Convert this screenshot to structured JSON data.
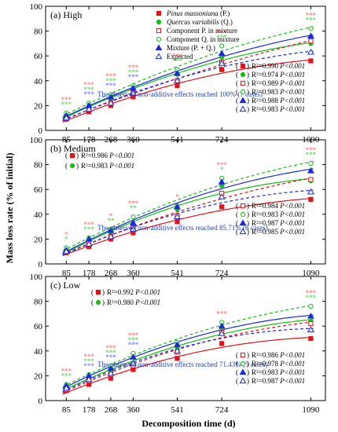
{
  "xlabel": "Decomposition time (d)",
  "ylabel": "Mass loss rate (% of initial)",
  "x_ticks": [
    85,
    178,
    268,
    360,
    541,
    724,
    1090
  ],
  "y_ticks": [
    0,
    20,
    40,
    60,
    80,
    100
  ],
  "legend": [
    {
      "label": "Pinus massoniana",
      "abbr": "(P.)",
      "italic": true,
      "marker": "square-filled",
      "color": "#e3121b"
    },
    {
      "label": "Quercus variabilis",
      "abbr": "(Q.)",
      "italic": true,
      "marker": "circle-filled",
      "color": "#15c015"
    },
    {
      "label": "Component P. in mixture",
      "abbr": "",
      "italic": false,
      "marker": "square-open",
      "color": "#e3121b"
    },
    {
      "label": "Component Q. in mixture",
      "abbr": "",
      "italic": false,
      "marker": "circle-open",
      "color": "#15c015"
    },
    {
      "label": "Mixture",
      "abbr": "(P. + Q.)",
      "italic": false,
      "marker": "triangle-filled",
      "color": "#1a2ad6"
    },
    {
      "label": "Expected",
      "abbr": "",
      "italic": false,
      "marker": "triangle-open",
      "color": "#1a2ad6"
    }
  ],
  "colors": {
    "pine": "#e3121b",
    "oak": "#15c015",
    "mix": "#1a2ad6",
    "star_red": "#ff8a8a",
    "star_green": "#7ad67a",
    "star_blue": "#8a8aff",
    "note": "#1f3fb8"
  },
  "chart_data": [
    {
      "type": "scatter",
      "title": "(a) High",
      "ylim": [
        0,
        100
      ],
      "note": "The observed non-additive effects reached 100% (7 cases)",
      "stats": [
        {
          "series": "Pinus massoniana",
          "r2": "R²=0.990",
          "p": "P<0.001"
        },
        {
          "series": "Quercus variabilis",
          "r2": "R²=0.974",
          "p": "P<0.001"
        },
        {
          "series": "Component P. in mixture",
          "r2": "R²=0.989",
          "p": "P<0.001"
        },
        {
          "series": "Component Q. in mixture",
          "r2": "R²=0.983",
          "p": "P<0.001"
        },
        {
          "series": "Mixture",
          "r2": "R²=0.988",
          "p": "P<0.001"
        },
        {
          "series": "Expected",
          "r2": "R²=0.983",
          "p": "P<0.001"
        }
      ],
      "series": [
        {
          "name": "Pinus massoniana",
          "x": [
            85,
            178,
            268,
            360,
            541,
            724,
            1090
          ],
          "y": [
            9,
            15,
            20,
            27,
            36,
            49,
            56
          ]
        },
        {
          "name": "Quercus variabilis",
          "x": [
            85,
            178,
            268,
            360,
            541,
            724,
            1090
          ],
          "y": [
            12,
            19,
            25,
            33,
            45,
            59,
            70
          ]
        },
        {
          "name": "Component P. in mixture",
          "x": [
            85,
            178,
            268,
            360,
            541,
            724,
            1090
          ],
          "y": [
            10,
            17,
            22,
            30,
            40,
            55,
            72
          ]
        },
        {
          "name": "Component Q. in mixture",
          "x": [
            85,
            178,
            268,
            360,
            541,
            724,
            1090
          ],
          "y": [
            14,
            22,
            29,
            36,
            49,
            68,
            82
          ]
        },
        {
          "name": "Mixture",
          "x": [
            85,
            178,
            268,
            360,
            541,
            724,
            1090
          ],
          "y": [
            12,
            20,
            27,
            34,
            46,
            62,
            76
          ]
        },
        {
          "name": "Expected",
          "x": [
            85,
            178,
            268,
            360,
            541,
            724,
            1090
          ],
          "y": [
            10,
            17,
            22,
            30,
            40,
            54,
            63
          ]
        }
      ],
      "significance": [
        {
          "x": 85,
          "rows": [
            "***",
            "***"
          ]
        },
        {
          "x": 178,
          "rows": [
            "***",
            "***",
            "***"
          ]
        },
        {
          "x": 268,
          "rows": [
            "***",
            "***",
            "***"
          ]
        },
        {
          "x": 360,
          "rows": [
            "***",
            "***",
            "***"
          ]
        },
        {
          "x": 541,
          "rows": [
            "***",
            "***"
          ]
        },
        {
          "x": 724,
          "rows": [
            "***",
            "***"
          ]
        },
        {
          "x": 1090,
          "rows": [
            "***",
            "***"
          ]
        }
      ]
    },
    {
      "type": "scatter",
      "title": "(b) Medium",
      "ylim": [
        0,
        100
      ],
      "note": "The observed non-additive effects reached 85.71% (6 cases)",
      "stats": [
        {
          "series": "Pinus massoniana",
          "r2": "R²=0.986",
          "p": "P<0.001"
        },
        {
          "series": "Quercus variabilis",
          "r2": "R²=0.983",
          "p": "P<0.001"
        },
        {
          "series": "Component P. in mixture",
          "r2": "R²=0.984",
          "p": "P<0.001"
        },
        {
          "series": "Component Q. in mixture",
          "r2": "R²=0.983",
          "p": "P<0.001"
        },
        {
          "series": "Mixture",
          "r2": "R²=0.987",
          "p": "P<0.001"
        },
        {
          "series": "Expected",
          "r2": "R²=0.985",
          "p": "P<0.001"
        }
      ],
      "series": [
        {
          "name": "Pinus massoniana",
          "x": [
            85,
            178,
            268,
            360,
            541,
            724,
            1090
          ],
          "y": [
            9,
            14,
            20,
            25,
            34,
            46,
            52
          ]
        },
        {
          "name": "Quercus variabilis",
          "x": [
            85,
            178,
            268,
            360,
            541,
            724,
            1090
          ],
          "y": [
            11,
            19,
            25,
            31,
            44,
            63,
            67
          ]
        },
        {
          "name": "Component P. in mixture",
          "x": [
            85,
            178,
            268,
            360,
            541,
            724,
            1090
          ],
          "y": [
            10,
            17,
            22,
            29,
            39,
            57,
            68
          ]
        },
        {
          "name": "Component Q. in mixture",
          "x": [
            85,
            178,
            268,
            360,
            541,
            724,
            1090
          ],
          "y": [
            13,
            21,
            28,
            38,
            47,
            69,
            81
          ]
        },
        {
          "name": "Mixture",
          "x": [
            85,
            178,
            268,
            360,
            541,
            724,
            1090
          ],
          "y": [
            11,
            20,
            27,
            33,
            46,
            66,
            75
          ]
        },
        {
          "name": "Expected",
          "x": [
            85,
            178,
            268,
            360,
            541,
            724,
            1090
          ],
          "y": [
            10,
            16,
            22,
            28,
            38,
            54,
            58
          ]
        }
      ],
      "significance": [
        {
          "x": 85,
          "rows": [
            "*",
            "*"
          ]
        },
        {
          "x": 178,
          "rows": [
            "***",
            "***"
          ]
        },
        {
          "x": 268,
          "rows": [
            "*",
            "**"
          ]
        },
        {
          "x": 360,
          "rows": [
            "***",
            "**"
          ]
        },
        {
          "x": 541,
          "rows": [
            "*"
          ]
        },
        {
          "x": 724,
          "rows": [
            "***",
            "*"
          ]
        },
        {
          "x": 1090,
          "rows": [
            "***",
            "***"
          ]
        }
      ]
    },
    {
      "type": "scatter",
      "title": "(c) Low",
      "ylim": [
        0,
        100
      ],
      "note": "The observed non-additive effects reached 71.43% (5 cases)",
      "stats": [
        {
          "series": "Pinus massoniana",
          "r2": "R²=0.992",
          "p": "P<0.001"
        },
        {
          "series": "Quercus variabilis",
          "r2": "R²=0.980",
          "p": "P<0.001"
        },
        {
          "series": "Component P. in mixture",
          "r2": "R²=0.986",
          "p": "P<0.001"
        },
        {
          "series": "Component Q. in mixture",
          "r2": "R²=0.978",
          "p": "P<0.001"
        },
        {
          "series": "Mixture",
          "r2": "R²=0.983",
          "p": "P<0.001"
        },
        {
          "series": "Expected",
          "r2": "R²=0.987",
          "p": "P<0.001"
        }
      ],
      "series": [
        {
          "name": "Pinus massoniana",
          "x": [
            85,
            178,
            268,
            360,
            541,
            724,
            1090
          ],
          "y": [
            8,
            13,
            18,
            25,
            34,
            46,
            50
          ]
        },
        {
          "name": "Quercus variabilis",
          "x": [
            85,
            178,
            268,
            360,
            541,
            724,
            1090
          ],
          "y": [
            11,
            18,
            24,
            30,
            42,
            58,
            64
          ]
        },
        {
          "name": "Component P. in mixture",
          "x": [
            85,
            178,
            268,
            360,
            541,
            724,
            1090
          ],
          "y": [
            9,
            16,
            21,
            28,
            39,
            55,
            62
          ]
        },
        {
          "name": "Component Q. in mixture",
          "x": [
            85,
            178,
            268,
            360,
            541,
            724,
            1090
          ],
          "y": [
            13,
            21,
            28,
            38,
            47,
            63,
            76
          ]
        },
        {
          "name": "Mixture",
          "x": [
            85,
            178,
            268,
            360,
            541,
            724,
            1090
          ],
          "y": [
            12,
            20,
            26,
            35,
            45,
            60,
            68
          ]
        },
        {
          "name": "Expected",
          "x": [
            85,
            178,
            268,
            360,
            541,
            724,
            1090
          ],
          "y": [
            10,
            17,
            22,
            30,
            40,
            54,
            57
          ]
        }
      ],
      "significance": [
        {
          "x": 85,
          "rows": [
            "***",
            "***"
          ]
        },
        {
          "x": 178,
          "rows": [
            "***",
            "***",
            "***"
          ]
        },
        {
          "x": 268,
          "rows": [
            "***",
            "***",
            "***"
          ]
        },
        {
          "x": 360,
          "rows": [
            "***",
            "***",
            "***"
          ]
        },
        {
          "x": 724,
          "rows": [
            "***"
          ]
        },
        {
          "x": 1090,
          "rows": [
            "***",
            "***"
          ]
        }
      ]
    }
  ]
}
